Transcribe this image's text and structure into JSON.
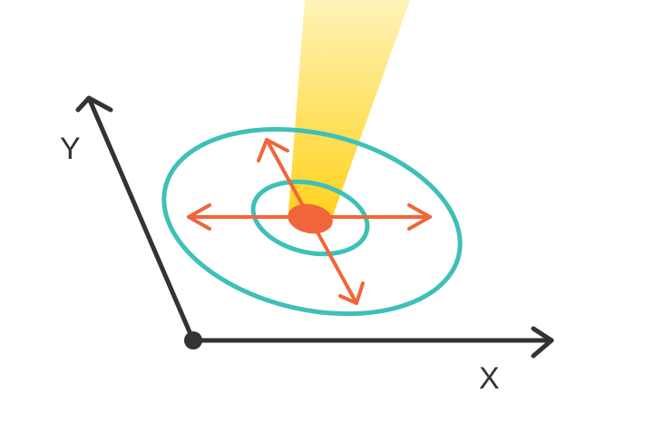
{
  "diagram": {
    "axes": {
      "x_label": "X",
      "y_label": "Y"
    },
    "colors": {
      "axis": "#333333",
      "ring": "#3ec0b8",
      "arrow": "#f0663a",
      "spot": "#f0663a",
      "beam_top": "#fff3b8",
      "beam_bottom": "#ffd21a",
      "background": "#ffffff"
    }
  }
}
